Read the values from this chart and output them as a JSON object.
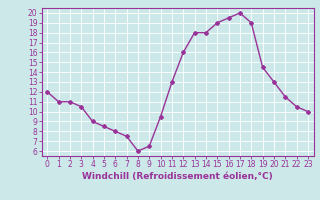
{
  "x": [
    0,
    1,
    2,
    3,
    4,
    5,
    6,
    7,
    8,
    9,
    10,
    11,
    12,
    13,
    14,
    15,
    16,
    17,
    18,
    19,
    20,
    21,
    22,
    23
  ],
  "y": [
    12,
    11,
    11,
    10.5,
    9,
    8.5,
    8,
    7.5,
    6,
    6.5,
    9.5,
    13,
    16,
    18,
    18,
    19,
    19.5,
    20,
    19,
    14.5,
    13,
    11.5,
    10.5,
    10
  ],
  "line_color": "#993399",
  "marker": "D",
  "marker_size": 2,
  "line_width": 1,
  "bg_color": "#cce8e8",
  "grid_color": "#ffffff",
  "xlabel": "Windchill (Refroidissement éolien,°C)",
  "xlabel_fontsize": 6.5,
  "xlim": [
    -0.5,
    23.5
  ],
  "ylim": [
    5.5,
    20.5
  ],
  "yticks": [
    6,
    7,
    8,
    9,
    10,
    11,
    12,
    13,
    14,
    15,
    16,
    17,
    18,
    19,
    20
  ],
  "xticks": [
    0,
    1,
    2,
    3,
    4,
    5,
    6,
    7,
    8,
    9,
    10,
    11,
    12,
    13,
    14,
    15,
    16,
    17,
    18,
    19,
    20,
    21,
    22,
    23
  ],
  "tick_fontsize": 5.5,
  "tick_color": "#993399",
  "axis_color": "#993399",
  "spine_color": "#993399"
}
